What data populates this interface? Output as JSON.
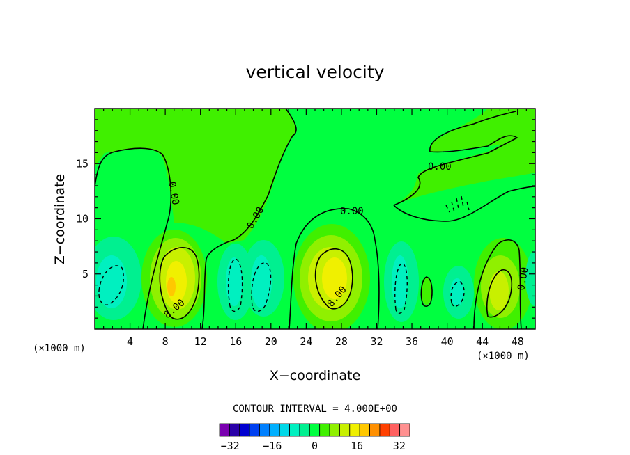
{
  "chart_data": {
    "type": "contour",
    "title": "vertical velocity",
    "xlabel": "X−coordinate",
    "ylabel": "Z−coordinate",
    "x_unit_left": "(×1000 m)",
    "x_unit_right": "(×1000 m)",
    "xlim": [
      0,
      50
    ],
    "ylim": [
      0,
      20
    ],
    "x_ticks": [
      4,
      8,
      12,
      16,
      20,
      24,
      28,
      32,
      36,
      40,
      44,
      48
    ],
    "y_ticks": [
      5,
      10,
      15
    ],
    "contour_interval_text": "CONTOUR INTERVAL = 4.000E+00",
    "contour_labels": [
      "0.00",
      "0.00",
      "0.00",
      "0.00",
      "8.00",
      "8.00",
      "0.00"
    ],
    "colorbar": {
      "levels": [
        -36,
        -32,
        -28,
        -24,
        -20,
        -16,
        -12,
        -8,
        -4,
        0,
        4,
        8,
        12,
        16,
        20,
        24,
        28,
        32,
        36
      ],
      "tick_labels": [
        "−32",
        "−16",
        "0",
        "16",
        "32"
      ],
      "tick_values": [
        -32,
        -16,
        0,
        16,
        32
      ],
      "colors": [
        "#7a00b0",
        "#2a00a8",
        "#0000d0",
        "#0040f0",
        "#0080ff",
        "#00b0ff",
        "#00d8e8",
        "#00f0c0",
        "#00f090",
        "#00ff40",
        "#40f000",
        "#90f000",
        "#c8f000",
        "#f0f000",
        "#ffc800",
        "#ff9000",
        "#ff4000",
        "#ff6060",
        "#ff9090"
      ]
    },
    "cells": [
      {
        "x": 2.5,
        "z": 3.5,
        "value": -10
      },
      {
        "x": 9.2,
        "z": 4.0,
        "value": 17
      },
      {
        "x": 15.8,
        "z": 4.0,
        "value": -10
      },
      {
        "x": 18.8,
        "z": 4.0,
        "value": -10
      },
      {
        "x": 27.3,
        "z": 4.5,
        "value": 15
      },
      {
        "x": 34.5,
        "z": 4.0,
        "value": -7
      },
      {
        "x": 40.8,
        "z": 3.2,
        "value": -6
      },
      {
        "x": 45.5,
        "z": 3.5,
        "value": 11
      }
    ]
  }
}
